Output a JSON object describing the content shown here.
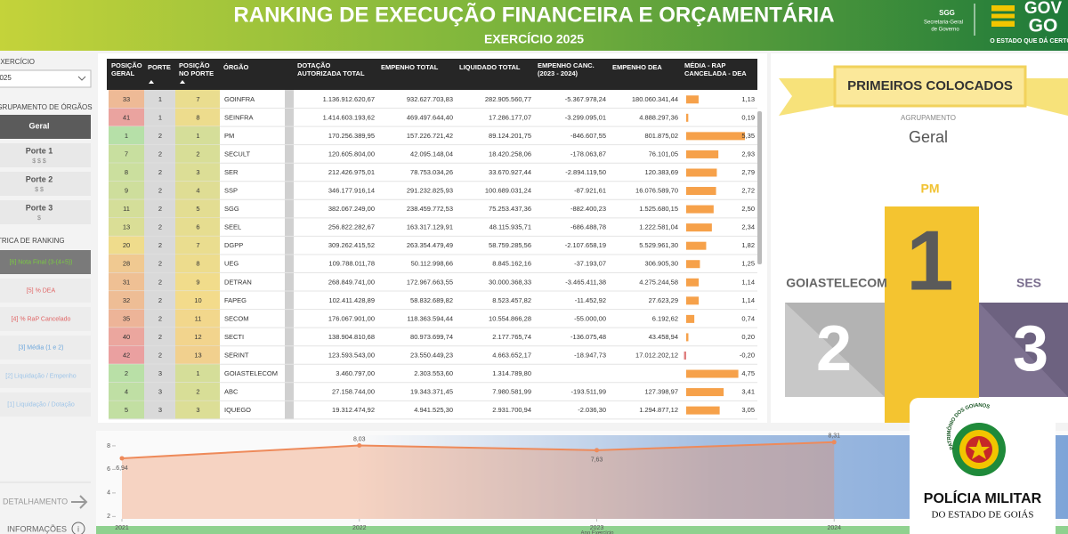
{
  "header": {
    "title": "RANKING DE EXECUÇÃO FINANCEIRA E ORÇAMENTÁRIA",
    "subtitle": "EXERCÍCIO 2025",
    "logo": {
      "sgg": "SGG",
      "sgg_line1": "Secretaria-Geral",
      "sgg_line2": "de Governo",
      "gov": "GOV",
      "go": "GO",
      "slogan": "O ESTADO QUE DÁ CERTO"
    }
  },
  "filters": {
    "year_label": "EXERCÍCIO",
    "year_value": "2025",
    "group_label": "AGRUPAMENTO DE ÓRGÃOS",
    "groups": [
      {
        "label": "Geral"
      },
      {
        "label": "Porte 1",
        "sub": "$ $ $"
      },
      {
        "label": "Porte 2",
        "sub": "$ $"
      },
      {
        "label": "Porte 3",
        "sub": "$"
      }
    ],
    "metric_label": "MÉTRICA DE RANKING",
    "metrics": [
      "[6] Nota Final (3-(4+5))",
      "[5] % DEA",
      "[4] % RaP Cancelado",
      "[3] Média (1 e 2)",
      "[2] Liquidação / Empenho",
      "[1] Liquidação / Dotação"
    ]
  },
  "nav": {
    "detail": "DETALHAMENTO",
    "info": "INFORMAÇÕES"
  },
  "table": {
    "columns": [
      [
        "POSIÇÃO",
        "GERAL"
      ],
      [
        "PORTE"
      ],
      [
        "POSIÇÃO",
        "NO PORTE"
      ],
      [
        "ÓRGÃO"
      ],
      [
        "DOTAÇÃO",
        "AUTORIZADA TOTAL"
      ],
      [
        "EMPENHO TOTAL"
      ],
      [
        "LIQUIDADO TOTAL"
      ],
      [
        "EMPENHO CANC.",
        "(2023 - 2024)"
      ],
      [
        "EMPENHO DEA"
      ],
      [
        "MÉDIA - RAP",
        "CANCELADA - DEA"
      ]
    ],
    "rows": [
      [
        33,
        1,
        7,
        "GOINFRA",
        "1.136.912.620,67",
        "932.627.703,83",
        "282.905.560,77",
        "-5.367.978,24",
        "180.060.341,44",
        {
          "value": 1.13,
          "label": "1,13"
        }
      ],
      [
        41,
        1,
        8,
        "SEINFRA",
        "1.414.603.193,62",
        "469.497.644,40",
        "17.286.177,07",
        "-3.299.095,01",
        "4.888.297,36",
        {
          "value": 0.19,
          "label": "0,19"
        }
      ],
      [
        1,
        2,
        1,
        "PM",
        "170.256.389,95",
        "157.226.721,42",
        "89.124.201,75",
        "-846.607,55",
        "801.875,02",
        {
          "value": 5.35,
          "label": "5,35"
        }
      ],
      [
        7,
        2,
        2,
        "SECULT",
        "120.605.804,00",
        "42.095.148,04",
        "18.420.258,06",
        "-178.063,87",
        "76.101,05",
        {
          "value": 2.93,
          "label": "2,93"
        }
      ],
      [
        8,
        2,
        3,
        "SER",
        "212.426.975,01",
        "78.753.034,26",
        "33.670.927,44",
        "-2.894.119,50",
        "120.383,69",
        {
          "value": 2.79,
          "label": "2,79"
        }
      ],
      [
        9,
        2,
        4,
        "SSP",
        "346.177.916,14",
        "291.232.825,93",
        "100.689.031,24",
        "-87.921,61",
        "16.076.589,70",
        {
          "value": 2.72,
          "label": "2,72"
        }
      ],
      [
        11,
        2,
        5,
        "SGG",
        "382.067.249,00",
        "238.459.772,53",
        "75.253.437,36",
        "-882.400,23",
        "1.525.680,15",
        {
          "value": 2.5,
          "label": "2,50"
        }
      ],
      [
        13,
        2,
        6,
        "SEEL",
        "256.822.282,67",
        "163.317.129,91",
        "48.115.935,71",
        "-686.488,78",
        "1.222.581,04",
        {
          "value": 2.34,
          "label": "2,34"
        }
      ],
      [
        20,
        2,
        7,
        "DGPP",
        "309.262.415,52",
        "263.354.479,49",
        "58.759.285,56",
        "-2.107.658,19",
        "5.529.961,30",
        {
          "value": 1.82,
          "label": "1,82"
        }
      ],
      [
        28,
        2,
        8,
        "UEG",
        "109.788.011,78",
        "50.112.998,66",
        "8.845.162,16",
        "-37.193,07",
        "306.905,30",
        {
          "value": 1.25,
          "label": "1,25"
        }
      ],
      [
        31,
        2,
        9,
        "DETRAN",
        "268.849.741,00",
        "172.967.663,55",
        "30.000.368,33",
        "-3.465.411,38",
        "4.275.244,58",
        {
          "value": 1.14,
          "label": "1,14"
        }
      ],
      [
        32,
        2,
        10,
        "FAPEG",
        "102.411.428,89",
        "58.832.689,82",
        "8.523.457,82",
        "-11.452,92",
        "27.623,29",
        {
          "value": 1.14,
          "label": "1,14"
        }
      ],
      [
        35,
        2,
        11,
        "SECOM",
        "176.067.901,00",
        "118.363.594,44",
        "10.554.866,28",
        "-55.000,00",
        "6.192,62",
        {
          "value": 0.74,
          "label": "0,74"
        }
      ],
      [
        40,
        2,
        12,
        "SECTI",
        "138.904.810,68",
        "80.973.699,74",
        "2.177.765,74",
        "-136.075,48",
        "43.458,94",
        {
          "value": 0.2,
          "label": "0,20"
        }
      ],
      [
        42,
        2,
        13,
        "SERINT",
        "123.593.543,00",
        "23.550.449,23",
        "4.663.652,17",
        "-18.947,73",
        "17.012.202,12",
        {
          "value": -0.2,
          "label": "-0,20"
        }
      ],
      [
        2,
        3,
        1,
        "GOIASTELECOM",
        "3.460.797,00",
        "2.303.553,60",
        "1.314.789,80",
        null,
        null,
        {
          "value": 4.75,
          "label": "4,75"
        }
      ],
      [
        4,
        3,
        2,
        "ABC",
        "27.158.744,00",
        "19.343.371,45",
        "7.980.581,99",
        "-193.511,99",
        "127.398,97",
        {
          "value": 3.41,
          "label": "3,41"
        }
      ],
      [
        5,
        3,
        3,
        "IQUEGO",
        "19.312.474,92",
        "4.941.525,30",
        "2.931.700,94",
        "-2.036,30",
        "1.294.877,12",
        {
          "value": 3.05,
          "label": "3,05"
        }
      ]
    ]
  },
  "podium": {
    "title": "PRIMEIROS COLOCADOS",
    "group_label": "AGRUPAMENTO",
    "group_value": "Geral",
    "first": {
      "name": "PM",
      "rank": "1"
    },
    "second": {
      "name": "GOIASTELECOM",
      "rank": "2"
    },
    "third": {
      "name": "SES",
      "rank": "3"
    }
  },
  "chart_data": {
    "type": "line",
    "x_label": "Ano Exercício",
    "x": [
      2021,
      2022,
      2023,
      2024
    ],
    "xlim": [
      2021,
      2025
    ],
    "xticks": [
      2021,
      2022,
      2023,
      2024
    ],
    "ylim": [
      1.8,
      8.9
    ],
    "yticks": [
      2,
      4,
      6,
      8
    ],
    "series": [
      {
        "color": "#ee8a5a",
        "values": [
          6.94,
          8.03,
          7.63,
          8.31
        ],
        "value_labels": [
          "6,94",
          "8,03",
          "7,63",
          "8,31"
        ]
      }
    ]
  },
  "badge": {
    "ring": "PATRIMÔNIO DOS GOIANOS",
    "line1": "POLÍCIA MILITAR",
    "line2": "DO ESTADO DE GOIÁS"
  }
}
